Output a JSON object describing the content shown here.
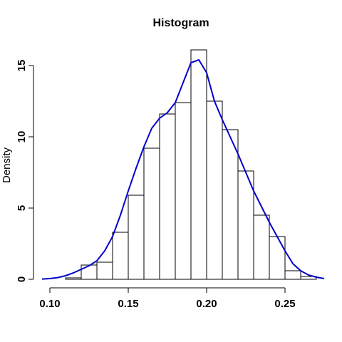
{
  "chart_data": {
    "type": "bar",
    "title": "Histogram",
    "xlabel": "",
    "ylabel": "Density",
    "xlim": [
      0.095,
      0.275
    ],
    "ylim": [
      0,
      16.5
    ],
    "bin_edges": [
      0.11,
      0.12,
      0.13,
      0.14,
      0.15,
      0.16,
      0.17,
      0.18,
      0.19,
      0.2,
      0.21,
      0.22,
      0.23,
      0.24,
      0.25,
      0.26,
      0.27
    ],
    "values": [
      0.1,
      1.0,
      1.2,
      3.3,
      5.9,
      9.2,
      11.6,
      12.4,
      16.1,
      12.5,
      10.5,
      7.6,
      4.5,
      3.0,
      0.6,
      0.2
    ],
    "x_ticks": [
      0.1,
      0.15,
      0.2,
      0.25
    ],
    "x_tick_labels": [
      "0.10",
      "0.15",
      "0.20",
      "0.25"
    ],
    "y_ticks": [
      0,
      5,
      10,
      15
    ],
    "y_tick_labels": [
      "0",
      "5",
      "10",
      "15"
    ],
    "density_curve": {
      "color": "#0000cc",
      "x": [
        0.095,
        0.1,
        0.105,
        0.11,
        0.115,
        0.12,
        0.125,
        0.13,
        0.135,
        0.14,
        0.145,
        0.15,
        0.155,
        0.16,
        0.165,
        0.17,
        0.175,
        0.18,
        0.185,
        0.19,
        0.195,
        0.2,
        0.205,
        0.21,
        0.215,
        0.22,
        0.225,
        0.23,
        0.235,
        0.24,
        0.245,
        0.25,
        0.255,
        0.26,
        0.265,
        0.27,
        0.275
      ],
      "y": [
        0.02,
        0.05,
        0.12,
        0.25,
        0.45,
        0.7,
        0.95,
        1.3,
        2.0,
        3.0,
        4.5,
        6.2,
        7.8,
        9.3,
        10.6,
        11.3,
        11.7,
        12.4,
        13.8,
        15.2,
        15.4,
        14.5,
        12.5,
        11.2,
        10.0,
        8.8,
        7.5,
        6.2,
        5.1,
        4.0,
        3.0,
        2.0,
        1.1,
        0.6,
        0.3,
        0.15,
        0.05
      ]
    }
  }
}
